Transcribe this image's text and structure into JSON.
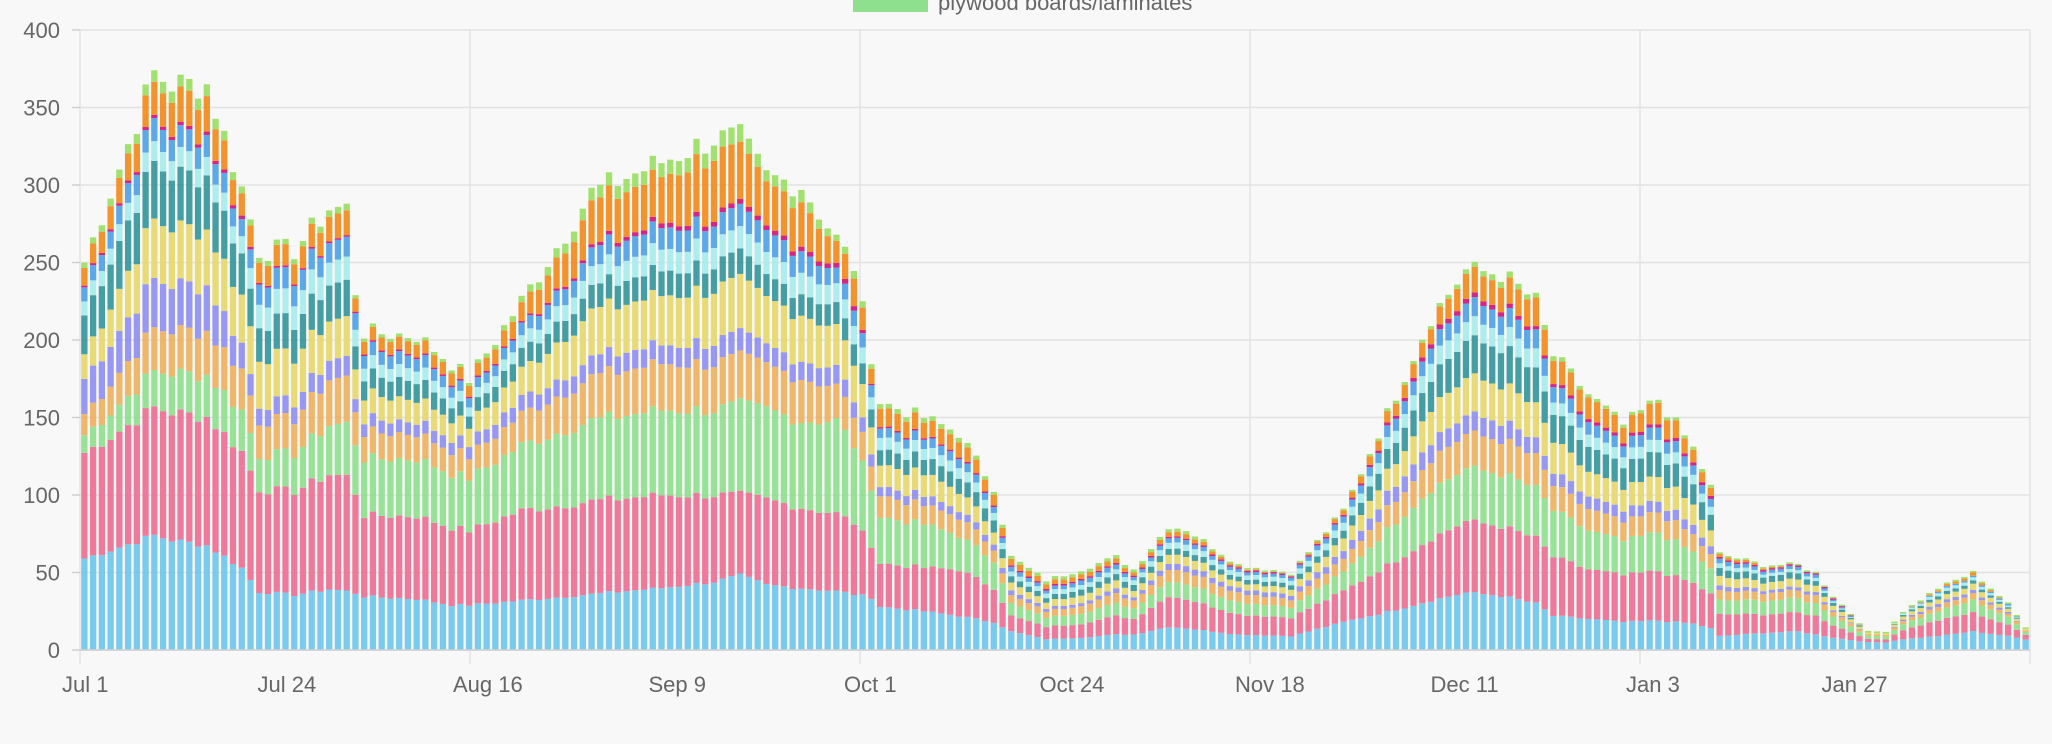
{
  "chart_data": {
    "type": "bar",
    "stacked": true,
    "grid": true,
    "legend_position": "top",
    "ylim": [
      0,
      400
    ],
    "y_ticks": [
      "0",
      "50",
      "100",
      "150",
      "200",
      "250",
      "300",
      "350",
      "400"
    ],
    "x_ticks": [
      "Jul 1",
      "Jul 24",
      "Aug 16",
      "Sep 9",
      "Oct 1",
      "Oct 24",
      "Nov 18",
      "Dec 11",
      "Jan 3",
      "Jan 27"
    ],
    "legend": [
      {
        "label": "plywood boards/laminates",
        "color": "#8ee08e"
      }
    ],
    "series_colors": [
      "#6ec6ec",
      "#ec6f93",
      "#8ee08e",
      "#edb15f",
      "#8f8ef0",
      "#e6d86b",
      "#35969a",
      "#a7ecec",
      "#4fa2e6",
      "#d0137b",
      "#f28a1c",
      "#9ade63"
    ],
    "anchors": [
      {
        "day": 0,
        "total": 250,
        "s": [
          52,
          60,
          10,
          12,
          20,
          14,
          22,
          8,
          8,
          1,
          10,
          3
        ]
      },
      {
        "day": 8,
        "total": 372,
        "s": [
          70,
          78,
          22,
          26,
          30,
          36,
          35,
          12,
          14,
          2,
          20,
          7
        ]
      },
      {
        "day": 10,
        "total": 365,
        "s": [
          67,
          78,
          24,
          26,
          28,
          35,
          32,
          12,
          13,
          2,
          21,
          7
        ]
      },
      {
        "day": 14,
        "total": 365,
        "s": [
          62,
          76,
          25,
          26,
          27,
          33,
          32,
          11,
          13,
          2,
          21,
          7
        ]
      },
      {
        "day": 18,
        "total": 298,
        "s": [
          48,
          68,
          24,
          24,
          15,
          28,
          24,
          10,
          10,
          2,
          13,
          4
        ]
      },
      {
        "day": 20,
        "total": 258,
        "s": [
          34,
          60,
          20,
          20,
          10,
          28,
          20,
          14,
          12,
          1,
          12,
          3
        ]
      },
      {
        "day": 24,
        "total": 258,
        "s": [
          32,
          60,
          22,
          20,
          10,
          26,
          20,
          14,
          12,
          1,
          12,
          3
        ]
      },
      {
        "day": 28,
        "total": 285,
        "s": [
          37,
          70,
          30,
          28,
          12,
          24,
          22,
          14,
          12,
          1,
          15,
          4
        ]
      },
      {
        "day": 30,
        "total": 285,
        "s": [
          36,
          70,
          32,
          28,
          12,
          24,
          22,
          14,
          12,
          1,
          15,
          4
        ]
      },
      {
        "day": 31,
        "total": 232,
        "s": [
          34,
          60,
          30,
          20,
          8,
          18,
          14,
          10,
          10,
          1,
          8,
          2
        ]
      },
      {
        "day": 32,
        "total": 205,
        "s": [
          33,
          50,
          35,
          16,
          8,
          15,
          12,
          8,
          8,
          1,
          8,
          2
        ]
      },
      {
        "day": 38,
        "total": 203,
        "s": [
          32,
          52,
          36,
          16,
          8,
          14,
          12,
          8,
          8,
          1,
          8,
          2
        ]
      },
      {
        "day": 42,
        "total": 185,
        "s": [
          29,
          50,
          35,
          15,
          8,
          13,
          10,
          7,
          7,
          1,
          8,
          2
        ]
      },
      {
        "day": 44,
        "total": 175,
        "s": [
          29,
          48,
          34,
          14,
          8,
          12,
          8,
          6,
          6,
          1,
          7,
          2
        ]
      },
      {
        "day": 50,
        "total": 225,
        "s": [
          32,
          58,
          42,
          20,
          10,
          18,
          12,
          8,
          8,
          1,
          12,
          4
        ]
      },
      {
        "day": 58,
        "total": 295,
        "s": [
          36,
          60,
          52,
          28,
          12,
          30,
          15,
          12,
          12,
          2,
          28,
          8
        ]
      },
      {
        "day": 66,
        "total": 315,
        "s": [
          40,
          60,
          55,
          30,
          12,
          32,
          16,
          14,
          14,
          3,
          30,
          9
        ]
      },
      {
        "day": 72,
        "total": 330,
        "s": [
          44,
          56,
          55,
          30,
          14,
          34,
          16,
          14,
          14,
          3,
          40,
          10
        ]
      },
      {
        "day": 75,
        "total": 330,
        "s": [
          48,
          52,
          58,
          30,
          14,
          34,
          16,
          14,
          14,
          3,
          36,
          11
        ]
      },
      {
        "day": 78,
        "total": 305,
        "s": [
          42,
          55,
          58,
          28,
          12,
          30,
          14,
          14,
          14,
          3,
          28,
          7
        ]
      },
      {
        "day": 82,
        "total": 300,
        "s": [
          40,
          52,
          56,
          28,
          12,
          30,
          14,
          14,
          14,
          3,
          29,
          8
        ]
      },
      {
        "day": 86,
        "total": 265,
        "s": [
          38,
          50,
          60,
          22,
          12,
          26,
          14,
          12,
          10,
          3,
          14,
          4
        ]
      },
      {
        "day": 88,
        "total": 248,
        "s": [
          36,
          46,
          50,
          20,
          10,
          24,
          14,
          12,
          10,
          3,
          18,
          5
        ]
      },
      {
        "day": 90,
        "total": 190,
        "s": [
          34,
          34,
          38,
          16,
          8,
          18,
          12,
          8,
          8,
          1,
          10,
          3
        ]
      },
      {
        "day": 91,
        "total": 160,
        "s": [
          28,
          28,
          30,
          14,
          6,
          14,
          10,
          8,
          6,
          1,
          12,
          3
        ]
      },
      {
        "day": 96,
        "total": 150,
        "s": [
          25,
          28,
          28,
          12,
          6,
          14,
          10,
          7,
          6,
          1,
          10,
          3
        ]
      },
      {
        "day": 100,
        "total": 140,
        "s": [
          22,
          30,
          22,
          12,
          5,
          12,
          10,
          7,
          6,
          1,
          10,
          3
        ]
      },
      {
        "day": 104,
        "total": 105,
        "s": [
          18,
          22,
          18,
          8,
          4,
          8,
          8,
          5,
          4,
          1,
          7,
          2
        ]
      },
      {
        "day": 106,
        "total": 60,
        "s": [
          12,
          10,
          8,
          5,
          3,
          5,
          4,
          3,
          3,
          1,
          4,
          2
        ]
      },
      {
        "day": 110,
        "total": 45,
        "s": [
          7,
          8,
          6,
          4,
          2,
          4,
          3,
          3,
          2,
          1,
          3,
          2
        ]
      },
      {
        "day": 114,
        "total": 52,
        "s": [
          8,
          9,
          7,
          5,
          2,
          5,
          4,
          3,
          3,
          1,
          3,
          2
        ]
      },
      {
        "day": 118,
        "total": 60,
        "s": [
          10,
          12,
          8,
          6,
          3,
          5,
          4,
          3,
          3,
          1,
          3,
          2
        ]
      },
      {
        "day": 120,
        "total": 52,
        "s": [
          10,
          10,
          7,
          5,
          2,
          4,
          4,
          3,
          2,
          1,
          2,
          2
        ]
      },
      {
        "day": 124,
        "total": 80,
        "s": [
          15,
          20,
          10,
          8,
          4,
          6,
          4,
          4,
          3,
          1,
          3,
          2
        ]
      },
      {
        "day": 126,
        "total": 78,
        "s": [
          14,
          19,
          10,
          8,
          4,
          6,
          4,
          4,
          3,
          1,
          3,
          2
        ]
      },
      {
        "day": 132,
        "total": 55,
        "s": [
          10,
          13,
          8,
          6,
          3,
          4,
          3,
          3,
          2,
          1,
          1,
          1
        ]
      },
      {
        "day": 138,
        "total": 50,
        "s": [
          9,
          12,
          7,
          5,
          3,
          4,
          3,
          3,
          2,
          1,
          0,
          1
        ]
      },
      {
        "day": 144,
        "total": 90,
        "s": [
          18,
          20,
          12,
          8,
          5,
          8,
          5,
          5,
          4,
          1,
          3,
          1
        ]
      },
      {
        "day": 150,
        "total": 165,
        "s": [
          26,
          32,
          25,
          15,
          10,
          15,
          14,
          8,
          8,
          2,
          8,
          2
        ]
      },
      {
        "day": 154,
        "total": 215,
        "s": [
          32,
          40,
          32,
          20,
          12,
          22,
          20,
          12,
          10,
          3,
          10,
          2
        ]
      },
      {
        "day": 158,
        "total": 245,
        "s": [
          37,
          46,
          34,
          22,
          12,
          24,
          24,
          12,
          12,
          3,
          16,
          3
        ]
      },
      {
        "day": 162,
        "total": 243,
        "s": [
          35,
          45,
          34,
          22,
          12,
          24,
          24,
          12,
          12,
          3,
          16,
          4
        ]
      },
      {
        "day": 166,
        "total": 225,
        "s": [
          30,
          42,
          32,
          20,
          10,
          22,
          22,
          12,
          12,
          2,
          18,
          3
        ]
      },
      {
        "day": 168,
        "total": 190,
        "s": [
          22,
          38,
          30,
          16,
          8,
          20,
          18,
          8,
          10,
          2,
          15,
          3
        ]
      },
      {
        "day": 172,
        "total": 165,
        "s": [
          20,
          32,
          25,
          14,
          8,
          16,
          16,
          8,
          8,
          2,
          14,
          2
        ]
      },
      {
        "day": 176,
        "total": 145,
        "s": [
          18,
          30,
          22,
          12,
          7,
          14,
          14,
          7,
          7,
          2,
          10,
          2
        ]
      },
      {
        "day": 180,
        "total": 162,
        "s": [
          19,
          32,
          25,
          13,
          7,
          16,
          16,
          8,
          8,
          2,
          14,
          2
        ]
      },
      {
        "day": 184,
        "total": 130,
        "s": [
          17,
          26,
          20,
          11,
          6,
          13,
          13,
          6,
          6,
          2,
          8,
          2
        ]
      },
      {
        "day": 186,
        "total": 105,
        "s": [
          14,
          22,
          16,
          9,
          5,
          10,
          10,
          5,
          5,
          2,
          5,
          2
        ]
      },
      {
        "day": 187,
        "total": 62,
        "s": [
          9,
          14,
          9,
          6,
          3,
          6,
          5,
          3,
          3,
          1,
          2,
          1
        ]
      },
      {
        "day": 192,
        "total": 55,
        "s": [
          11,
          12,
          9,
          5,
          2,
          5,
          4,
          2,
          2,
          1,
          1,
          1
        ]
      },
      {
        "day": 196,
        "total": 55,
        "s": [
          12,
          12,
          9,
          5,
          2,
          5,
          4,
          2,
          2,
          1,
          0,
          1
        ]
      },
      {
        "day": 198,
        "total": 50,
        "s": [
          10,
          12,
          8,
          5,
          2,
          4,
          3,
          2,
          2,
          1,
          0,
          1
        ]
      },
      {
        "day": 200,
        "total": 35,
        "s": [
          8,
          8,
          6,
          3,
          1,
          3,
          2,
          1,
          1,
          1,
          0,
          1
        ]
      },
      {
        "day": 204,
        "total": 12,
        "s": [
          5,
          2,
          2,
          1,
          0,
          1,
          0,
          0,
          0,
          0,
          0,
          1
        ]
      },
      {
        "day": 206,
        "total": 12,
        "s": [
          5,
          2,
          2,
          1,
          0,
          1,
          0,
          0,
          0,
          0,
          0,
          1
        ]
      },
      {
        "day": 208,
        "total": 25,
        "s": [
          7,
          6,
          4,
          2,
          1,
          2,
          1,
          1,
          0,
          0,
          0,
          1
        ]
      },
      {
        "day": 212,
        "total": 40,
        "s": [
          9,
          10,
          6,
          3,
          2,
          3,
          2,
          2,
          1,
          0,
          1,
          1
        ]
      },
      {
        "day": 216,
        "total": 50,
        "s": [
          12,
          12,
          8,
          4,
          2,
          4,
          2,
          2,
          1,
          0,
          2,
          1
        ]
      },
      {
        "day": 220,
        "total": 30,
        "s": [
          9,
          7,
          5,
          2,
          1,
          2,
          1,
          1,
          1,
          0,
          0,
          1
        ]
      },
      {
        "day": 222,
        "total": 15,
        "s": [
          7,
          3,
          2,
          1,
          0,
          1,
          0,
          0,
          0,
          0,
          0,
          1
        ]
      }
    ]
  }
}
